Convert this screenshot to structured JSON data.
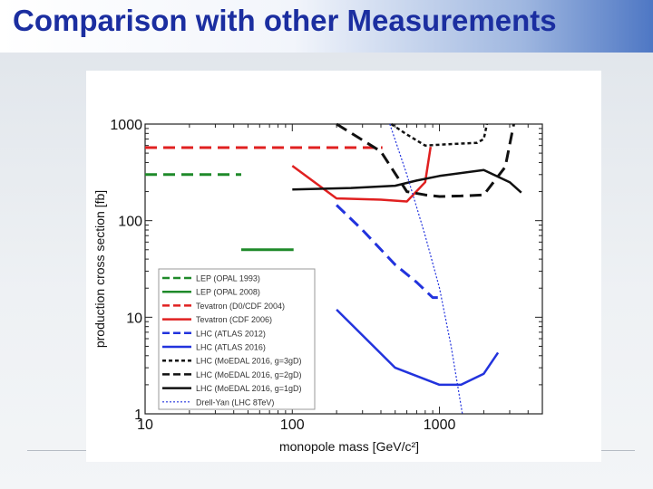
{
  "slide": {
    "title": "Comparison with other Measurements"
  },
  "chart_data": {
    "type": "line",
    "xlabel": "monopole mass [GeV/c²]",
    "ylabel": "production cross section [fb]",
    "x_scale": "log",
    "y_scale": "log",
    "xlim": [
      10,
      5000
    ],
    "ylim": [
      1,
      1000
    ],
    "x_ticks": [
      "10",
      "100",
      "1000"
    ],
    "y_ticks": [
      "1",
      "10",
      "100",
      "1000"
    ],
    "grid": false,
    "legend_position": "bottom-left",
    "series": [
      {
        "name": "LEP (OPAL 1993)",
        "color": "#1f8a2a",
        "style": "dashed",
        "width": 3,
        "points": [
          [
            10,
            300
          ],
          [
            45,
            300
          ]
        ]
      },
      {
        "name": "LEP (OPAL 2008)",
        "color": "#1f8a2a",
        "style": "solid",
        "width": 3,
        "points": [
          [
            45,
            50
          ],
          [
            102,
            50
          ]
        ]
      },
      {
        "name": "Tevatron (D0/CDF 2004)",
        "color": "#e02020",
        "style": "dashed",
        "width": 3,
        "points": [
          [
            10,
            570
          ],
          [
            410,
            570
          ]
        ]
      },
      {
        "name": "Tevatron (CDF 2006)",
        "color": "#e02020",
        "style": "solid",
        "width": 2.5,
        "points": [
          [
            100,
            370
          ],
          [
            200,
            170
          ],
          [
            400,
            165
          ],
          [
            600,
            158
          ],
          [
            800,
            250
          ],
          [
            870,
            580
          ]
        ]
      },
      {
        "name": "LHC (ATLAS 2012)",
        "color": "#2233dd",
        "style": "dashed",
        "width": 3,
        "points": [
          [
            200,
            145
          ],
          [
            300,
            80
          ],
          [
            500,
            35
          ],
          [
            700,
            23
          ],
          [
            900,
            16
          ],
          [
            1050,
            16
          ]
        ]
      },
      {
        "name": "LHC (ATLAS 2016)",
        "color": "#2233dd",
        "style": "solid",
        "width": 2.5,
        "points": [
          [
            200,
            12
          ],
          [
            500,
            3
          ],
          [
            1000,
            2
          ],
          [
            1400,
            2
          ],
          [
            2000,
            2.6
          ],
          [
            2500,
            4.3
          ]
        ]
      },
      {
        "name": "LHC (MoEDAL 2016, g=3gD)",
        "color": "#111111",
        "style": "dotted",
        "width": 2.5,
        "points": [
          [
            470,
            1000
          ],
          [
            600,
            780
          ],
          [
            800,
            600
          ],
          [
            1200,
            620
          ],
          [
            1800,
            640
          ],
          [
            2000,
            700
          ],
          [
            2100,
            1000
          ]
        ]
      },
      {
        "name": "LHC (MoEDAL 2016, g=2gD)",
        "color": "#111111",
        "style": "dashed",
        "width": 3,
        "points": [
          [
            200,
            1000
          ],
          [
            400,
            520
          ],
          [
            600,
            200
          ],
          [
            800,
            185
          ],
          [
            1000,
            178
          ],
          [
            1400,
            180
          ],
          [
            2000,
            185
          ],
          [
            2800,
            360
          ],
          [
            3200,
            1000
          ]
        ]
      },
      {
        "name": "LHC (MoEDAL 2016, g=1gD)",
        "color": "#111111",
        "style": "solid",
        "width": 2.5,
        "points": [
          [
            100,
            210
          ],
          [
            250,
            218
          ],
          [
            500,
            230
          ],
          [
            700,
            260
          ],
          [
            1000,
            290
          ],
          [
            2000,
            335
          ],
          [
            3000,
            250
          ],
          [
            3600,
            195
          ]
        ]
      },
      {
        "name": "Drell-Yan (LHC 8TeV)",
        "color": "#2233dd",
        "style": "fine-dotted",
        "width": 1.2,
        "points": [
          [
            460,
            1000
          ],
          [
            600,
            300
          ],
          [
            800,
            70
          ],
          [
            1000,
            20
          ],
          [
            1200,
            5
          ],
          [
            1430,
            1
          ]
        ]
      }
    ]
  }
}
